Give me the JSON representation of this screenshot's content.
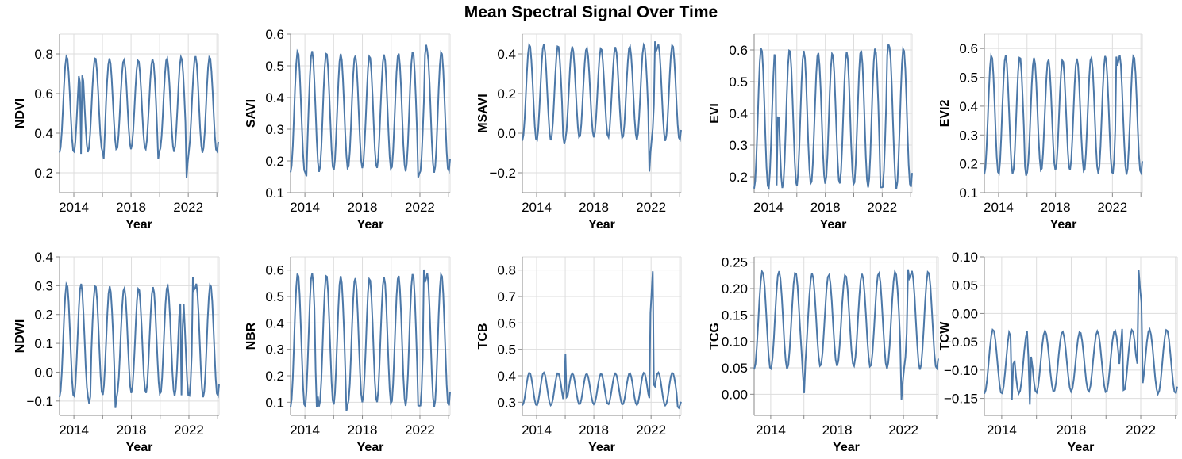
{
  "title": "Mean Spectral Signal Over Time",
  "colors": {
    "line": "#4c78a8",
    "grid": "#dddddd",
    "axis": "#888888"
  },
  "chart_data": [
    {
      "type": "line",
      "ylabel": "NDVI",
      "xlabel": "Year",
      "xlim": [
        2013.0,
        2024.1
      ],
      "ylim": [
        0.1,
        0.9
      ],
      "xticks": [
        2014,
        2018,
        2022
      ],
      "yticks": [
        0.2,
        0.4,
        0.6,
        0.8
      ],
      "grid": true,
      "base": 0.31,
      "amp": 0.47,
      "series": [
        {
          "x": [
            2014.5,
            2016.1,
            2019.9,
            2021.9
          ],
          "y": [
            0.29,
            0.27,
            0.27,
            0.15
          ]
        }
      ]
    },
    {
      "type": "line",
      "ylabel": "SAVI",
      "xlabel": "Year",
      "xlim": [
        2013.0,
        2024.1
      ],
      "ylim": [
        0.1,
        0.6
      ],
      "xticks": [
        2014,
        2018,
        2022
      ],
      "yticks": [
        0.1,
        0.2,
        0.3,
        0.4,
        0.5,
        0.6
      ],
      "grid": true,
      "base": 0.17,
      "amp": 0.37,
      "series": [
        {
          "x": [
            2014.1,
            2021.9,
            2022.4
          ],
          "y": [
            0.15,
            0.14,
            0.58
          ]
        }
      ]
    },
    {
      "type": "line",
      "ylabel": "MSAVI",
      "xlabel": "Year",
      "xlim": [
        2013.0,
        2024.1
      ],
      "ylim": [
        -0.3,
        0.5
      ],
      "xticks": [
        2014,
        2018,
        2022
      ],
      "yticks": [
        -0.2,
        0.0,
        0.2,
        0.4
      ],
      "grid": true,
      "base": -0.03,
      "amp": 0.47,
      "series": [
        {
          "x": [
            2015.9,
            2021.9,
            2022.3
          ],
          "y": [
            -0.07,
            -0.22,
            0.5
          ]
        }
      ]
    },
    {
      "type": "line",
      "ylabel": "EVI",
      "xlabel": "Year",
      "xlim": [
        2013.0,
        2024.1
      ],
      "ylim": [
        0.15,
        0.65
      ],
      "xticks": [
        2014,
        2018,
        2022
      ],
      "yticks": [
        0.2,
        0.3,
        0.4,
        0.5,
        0.6
      ],
      "grid": true,
      "base": 0.17,
      "amp": 0.43,
      "series": [
        {
          "x": [
            2014.6,
            2021.9,
            2022.4
          ],
          "y": [
            0.15,
            0.16,
            0.63
          ]
        }
      ]
    },
    {
      "type": "line",
      "ylabel": "EVI2",
      "xlabel": "Year",
      "xlim": [
        2013.0,
        2024.1
      ],
      "ylim": [
        0.1,
        0.65
      ],
      "xticks": [
        2014,
        2018,
        2022
      ],
      "yticks": [
        0.1,
        0.2,
        0.3,
        0.4,
        0.5,
        0.6
      ],
      "grid": true,
      "base": 0.17,
      "amp": 0.4,
      "series": [
        {
          "x": [
            2015.9,
            2022.3
          ],
          "y": [
            0.15,
            0.6
          ]
        }
      ]
    },
    {
      "type": "line",
      "ylabel": "NDWI",
      "xlabel": "Year",
      "xlim": [
        2013.0,
        2024.1
      ],
      "ylim": [
        -0.15,
        0.4
      ],
      "xticks": [
        2014,
        2018,
        2022
      ],
      "yticks": [
        -0.1,
        0.0,
        0.1,
        0.2,
        0.3,
        0.4
      ],
      "grid": true,
      "base": -0.08,
      "amp": 0.38,
      "series": [
        {
          "x": [
            2015.1,
            2016.9,
            2021.5,
            2022.3
          ],
          "y": [
            -0.13,
            -0.13,
            -0.11,
            0.36
          ]
        }
      ]
    },
    {
      "type": "line",
      "ylabel": "NBR",
      "xlabel": "Year",
      "xlim": [
        2013.0,
        2024.1
      ],
      "ylim": [
        0.05,
        0.65
      ],
      "xticks": [
        2014,
        2018,
        2022
      ],
      "yticks": [
        0.1,
        0.2,
        0.3,
        0.4,
        0.5,
        0.6
      ],
      "grid": true,
      "base": 0.09,
      "amp": 0.49,
      "series": [
        {
          "x": [
            2014.8,
            2016.9,
            2021.9,
            2022.3
          ],
          "y": [
            0.06,
            0.06,
            0.08,
            0.64
          ]
        }
      ]
    },
    {
      "type": "line",
      "ylabel": "TCB",
      "xlabel": "Year",
      "xlim": [
        2013.0,
        2024.1
      ],
      "ylim": [
        0.25,
        0.85
      ],
      "xticks": [
        2014,
        2018,
        2022
      ],
      "yticks": [
        0.3,
        0.4,
        0.5,
        0.6,
        0.7,
        0.8
      ],
      "grid": true,
      "base": 0.29,
      "amp": 0.12,
      "series": [
        {
          "x": [
            2016.0,
            2022.0,
            2022.1,
            2023.9
          ],
          "y": [
            0.49,
            0.84,
            0.84,
            0.27
          ]
        }
      ]
    },
    {
      "type": "line",
      "ylabel": "TCG",
      "xlabel": "Year",
      "xlim": [
        2013.0,
        2024.1
      ],
      "ylim": [
        -0.04,
        0.26
      ],
      "xticks": [
        2014,
        2018,
        2022
      ],
      "yticks": [
        0.0,
        0.05,
        0.1,
        0.15,
        0.2,
        0.25
      ],
      "grid": true,
      "base": 0.05,
      "amp": 0.18,
      "series": [
        {
          "x": [
            2016.0,
            2021.9,
            2022.3
          ],
          "y": [
            0.0,
            -0.02,
            0.25
          ]
        }
      ]
    },
    {
      "type": "line",
      "ylabel": "TCW",
      "xlabel": "Year",
      "xlim": [
        2013.0,
        2024.1
      ],
      "ylim": [
        -0.18,
        0.1
      ],
      "xticks": [
        2014,
        2018,
        2022
      ],
      "yticks": [
        -0.15,
        -0.1,
        -0.05,
        0.0,
        0.05,
        0.1
      ],
      "grid": true,
      "base": -0.14,
      "amp": 0.11,
      "series": [
        {
          "x": [
            2014.6,
            2015.6,
            2020.9,
            2021.9,
            2022.0
          ],
          "y": [
            -0.16,
            -0.17,
            0.0,
            0.1,
            0.1
          ]
        }
      ]
    }
  ]
}
